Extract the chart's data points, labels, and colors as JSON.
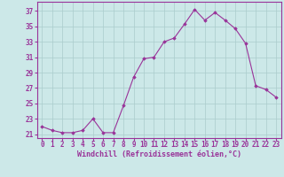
{
  "x": [
    0,
    1,
    2,
    3,
    4,
    5,
    6,
    7,
    8,
    9,
    10,
    11,
    12,
    13,
    14,
    15,
    16,
    17,
    18,
    19,
    20,
    21,
    22,
    23
  ],
  "y": [
    22.0,
    21.5,
    21.2,
    21.2,
    21.5,
    23.0,
    21.2,
    21.2,
    24.7,
    28.4,
    30.8,
    31.0,
    33.0,
    33.5,
    35.3,
    37.2,
    35.8,
    36.8,
    35.8,
    34.7,
    32.8,
    27.3,
    26.8,
    25.8
  ],
  "line_color": "#993399",
  "marker": "D",
  "marker_size": 1.8,
  "xlabel": "Windchill (Refroidissement éolien,°C)",
  "xlim": [
    -0.5,
    23.5
  ],
  "ylim": [
    20.5,
    38.2
  ],
  "yticks": [
    21,
    23,
    25,
    27,
    29,
    31,
    33,
    35,
    37
  ],
  "xticks": [
    0,
    1,
    2,
    3,
    4,
    5,
    6,
    7,
    8,
    9,
    10,
    11,
    12,
    13,
    14,
    15,
    16,
    17,
    18,
    19,
    20,
    21,
    22,
    23
  ],
  "bg_color": "#cce8e8",
  "grid_color": "#aacccc",
  "tick_color": "#993399",
  "label_color": "#993399",
  "tick_font_size": 5.5,
  "xlabel_font_size": 6.0
}
